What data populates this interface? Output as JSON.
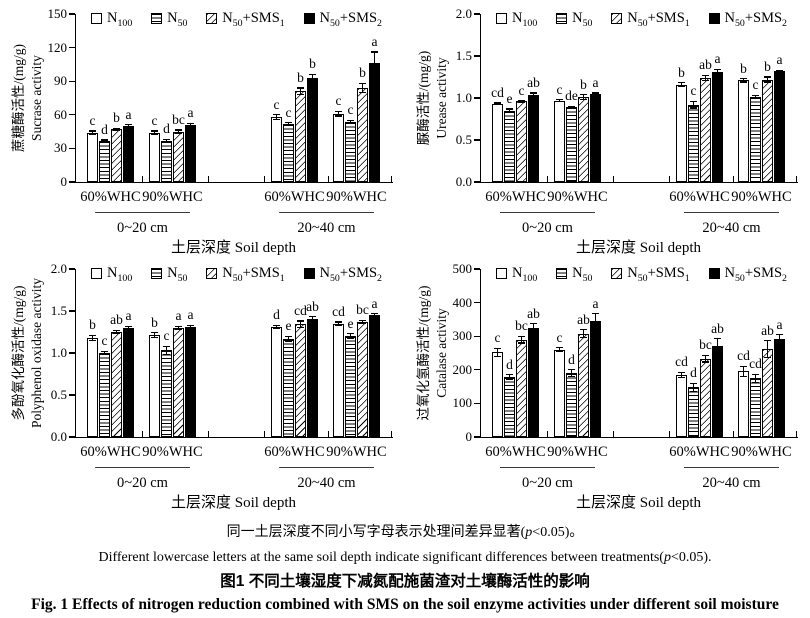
{
  "captions": {
    "note_zh": "同一土层深度不同小写字母表示处理间差异显著(p<0.05)。",
    "note_en": "Different lowercase letters at the same soil depth indicate significant differences between treatments(p<0.05).",
    "fig_zh": "图1  不同土壤湿度下减氮配施菌渣对土壤酶活性的影响",
    "fig_en": "Fig. 1  Effects of nitrogen reduction combined with SMS on the soil enzyme activities under different soil moisture"
  },
  "legend": {
    "entries": [
      {
        "label": "N_100",
        "pattern": "plain"
      },
      {
        "label": "N_50",
        "pattern": "hlines"
      },
      {
        "label": "N_50+SMS_1",
        "pattern": "diag"
      },
      {
        "label": "N_50+SMS_2",
        "pattern": "solid"
      }
    ]
  },
  "axis_common": {
    "group_labels": [
      "60%WHC",
      "90%WHC",
      "60%WHC",
      "90%WHC"
    ],
    "depth_labels": [
      "0~20 cm",
      "20~40 cm"
    ],
    "xlabel": "土层深度 Soil depth"
  },
  "colors": {
    "ink": "#000000",
    "background": "#ffffff",
    "pair_underline": "#3a3a3a"
  },
  "chart_data": [
    {
      "type": "bar",
      "ylabel_zh": "蔗糖酶活性/(mg/g)",
      "ylabel_en": "Sucrase activity",
      "ylim": [
        0,
        150
      ],
      "ystep": 30,
      "ydecimals": 0,
      "categories": [
        "0~20cm 60%WHC",
        "0~20cm 90%WHC",
        "20~40cm 60%WHC",
        "20~40cm 90%WHC"
      ],
      "series": [
        {
          "name": "N_100",
          "pattern": "plain",
          "values": [
            44,
            44,
            58,
            61
          ],
          "errors": [
            1.5,
            1.5,
            2,
            2
          ],
          "letters": [
            "c",
            "c",
            "c",
            "c"
          ]
        },
        {
          "name": "N_50",
          "pattern": "hlines",
          "values": [
            36.5,
            37,
            52,
            54
          ],
          "errors": [
            1,
            1,
            1,
            1
          ],
          "letters": [
            "d",
            "d",
            "c",
            "c"
          ]
        },
        {
          "name": "N_50+SMS_1",
          "pattern": "diag",
          "values": [
            47,
            45,
            81,
            84
          ],
          "errors": [
            1,
            1.5,
            3,
            4
          ],
          "letters": [
            "b",
            "bc",
            "b",
            "b"
          ]
        },
        {
          "name": "N_50+SMS_2",
          "pattern": "solid",
          "values": [
            50,
            51,
            93,
            106
          ],
          "errors": [
            1,
            1.5,
            3,
            10
          ],
          "letters": [
            "a",
            "a",
            "b",
            "a"
          ]
        }
      ]
    },
    {
      "type": "bar",
      "ylabel_zh": "脲酶活性/(mg/g)",
      "ylabel_en": "Urease activity",
      "ylim": [
        0,
        2.0
      ],
      "ystep": 0.5,
      "ydecimals": 1,
      "categories": [
        "0~20cm 60%WHC",
        "0~20cm 90%WHC",
        "20~40cm 60%WHC",
        "20~40cm 90%WHC"
      ],
      "series": [
        {
          "name": "N_100",
          "pattern": "plain",
          "values": [
            0.93,
            0.97,
            1.16,
            1.21
          ],
          "errors": [
            0.01,
            0.01,
            0.02,
            0.02
          ],
          "letters": [
            "cd",
            "c",
            "b",
            "b"
          ]
        },
        {
          "name": "N_50",
          "pattern": "hlines",
          "values": [
            0.85,
            0.89,
            0.92,
            1.01
          ],
          "errors": [
            0.02,
            0.01,
            0.04,
            0.02
          ],
          "letters": [
            "e",
            "de",
            "c",
            "c"
          ]
        },
        {
          "name": "N_50+SMS_1",
          "pattern": "diag",
          "values": [
            0.96,
            1.01,
            1.24,
            1.22
          ],
          "errors": [
            0.01,
            0.03,
            0.03,
            0.03
          ],
          "letters": [
            "c",
            "b",
            "ab",
            "b"
          ]
        },
        {
          "name": "N_50+SMS_2",
          "pattern": "solid",
          "values": [
            1.04,
            1.05,
            1.31,
            1.32
          ],
          "errors": [
            0.02,
            0.01,
            0.03,
            0.01
          ],
          "letters": [
            "ab",
            "a",
            "a",
            "a"
          ]
        }
      ]
    },
    {
      "type": "bar",
      "ylabel_zh": "多酚氧化酶活性/(mg/g)",
      "ylabel_en": "Polyphenol oxidase activity",
      "ylim": [
        0,
        2.0
      ],
      "ystep": 0.5,
      "ydecimals": 1,
      "categories": [
        "0~20cm 60%WHC",
        "0~20cm 90%WHC",
        "20~40cm 60%WHC",
        "20~40cm 90%WHC"
      ],
      "series": [
        {
          "name": "N_100",
          "pattern": "plain",
          "values": [
            1.18,
            1.21,
            1.31,
            1.35
          ],
          "errors": [
            0.03,
            0.03,
            0.02,
            0.02
          ],
          "letters": [
            "b",
            "b",
            "d",
            "cd"
          ]
        },
        {
          "name": "N_50",
          "pattern": "hlines",
          "values": [
            1.0,
            1.03,
            1.17,
            1.2
          ],
          "errors": [
            0.02,
            0.05,
            0.03,
            0.03
          ],
          "letters": [
            "c",
            "c",
            "e",
            "e"
          ]
        },
        {
          "name": "N_50+SMS_1",
          "pattern": "diag",
          "values": [
            1.25,
            1.3,
            1.34,
            1.37
          ],
          "errors": [
            0.02,
            0.02,
            0.04,
            0.02
          ],
          "letters": [
            "ab",
            "a",
            "cd",
            "bc"
          ]
        },
        {
          "name": "N_50+SMS_2",
          "pattern": "solid",
          "values": [
            1.3,
            1.31,
            1.4,
            1.45
          ],
          "errors": [
            0.02,
            0.02,
            0.03,
            0.02
          ],
          "letters": [
            "a",
            "a",
            "ab",
            "a"
          ]
        }
      ]
    },
    {
      "type": "bar",
      "ylabel_zh": "过氧化氢酶活性/(mg/g)",
      "ylabel_en": "Catalase activity",
      "ylim": [
        0,
        500
      ],
      "ystep": 100,
      "ydecimals": 0,
      "categories": [
        "0~20cm 60%WHC",
        "0~20cm 90%WHC",
        "20~40cm 60%WHC",
        "20~40cm 90%WHC"
      ],
      "series": [
        {
          "name": "N_100",
          "pattern": "plain",
          "values": [
            252,
            260,
            185,
            195
          ],
          "errors": [
            12,
            6,
            8,
            15
          ],
          "letters": [
            "c",
            "c",
            "cd",
            "cd"
          ]
        },
        {
          "name": "N_50",
          "pattern": "hlines",
          "values": [
            178,
            190,
            148,
            175
          ],
          "errors": [
            7,
            10,
            12,
            12
          ],
          "letters": [
            "d",
            "d",
            "d",
            "cd"
          ]
        },
        {
          "name": "N_50+SMS_1",
          "pattern": "diag",
          "values": [
            290,
            307,
            233,
            262
          ],
          "errors": [
            10,
            12,
            10,
            25
          ],
          "letters": [
            "bc",
            "ab",
            "bc",
            "ab"
          ]
        },
        {
          "name": "N_50+SMS_2",
          "pattern": "solid",
          "values": [
            325,
            345,
            272,
            293
          ],
          "errors": [
            12,
            22,
            20,
            12
          ],
          "letters": [
            "ab",
            "a",
            "ab",
            "a"
          ]
        }
      ]
    }
  ]
}
